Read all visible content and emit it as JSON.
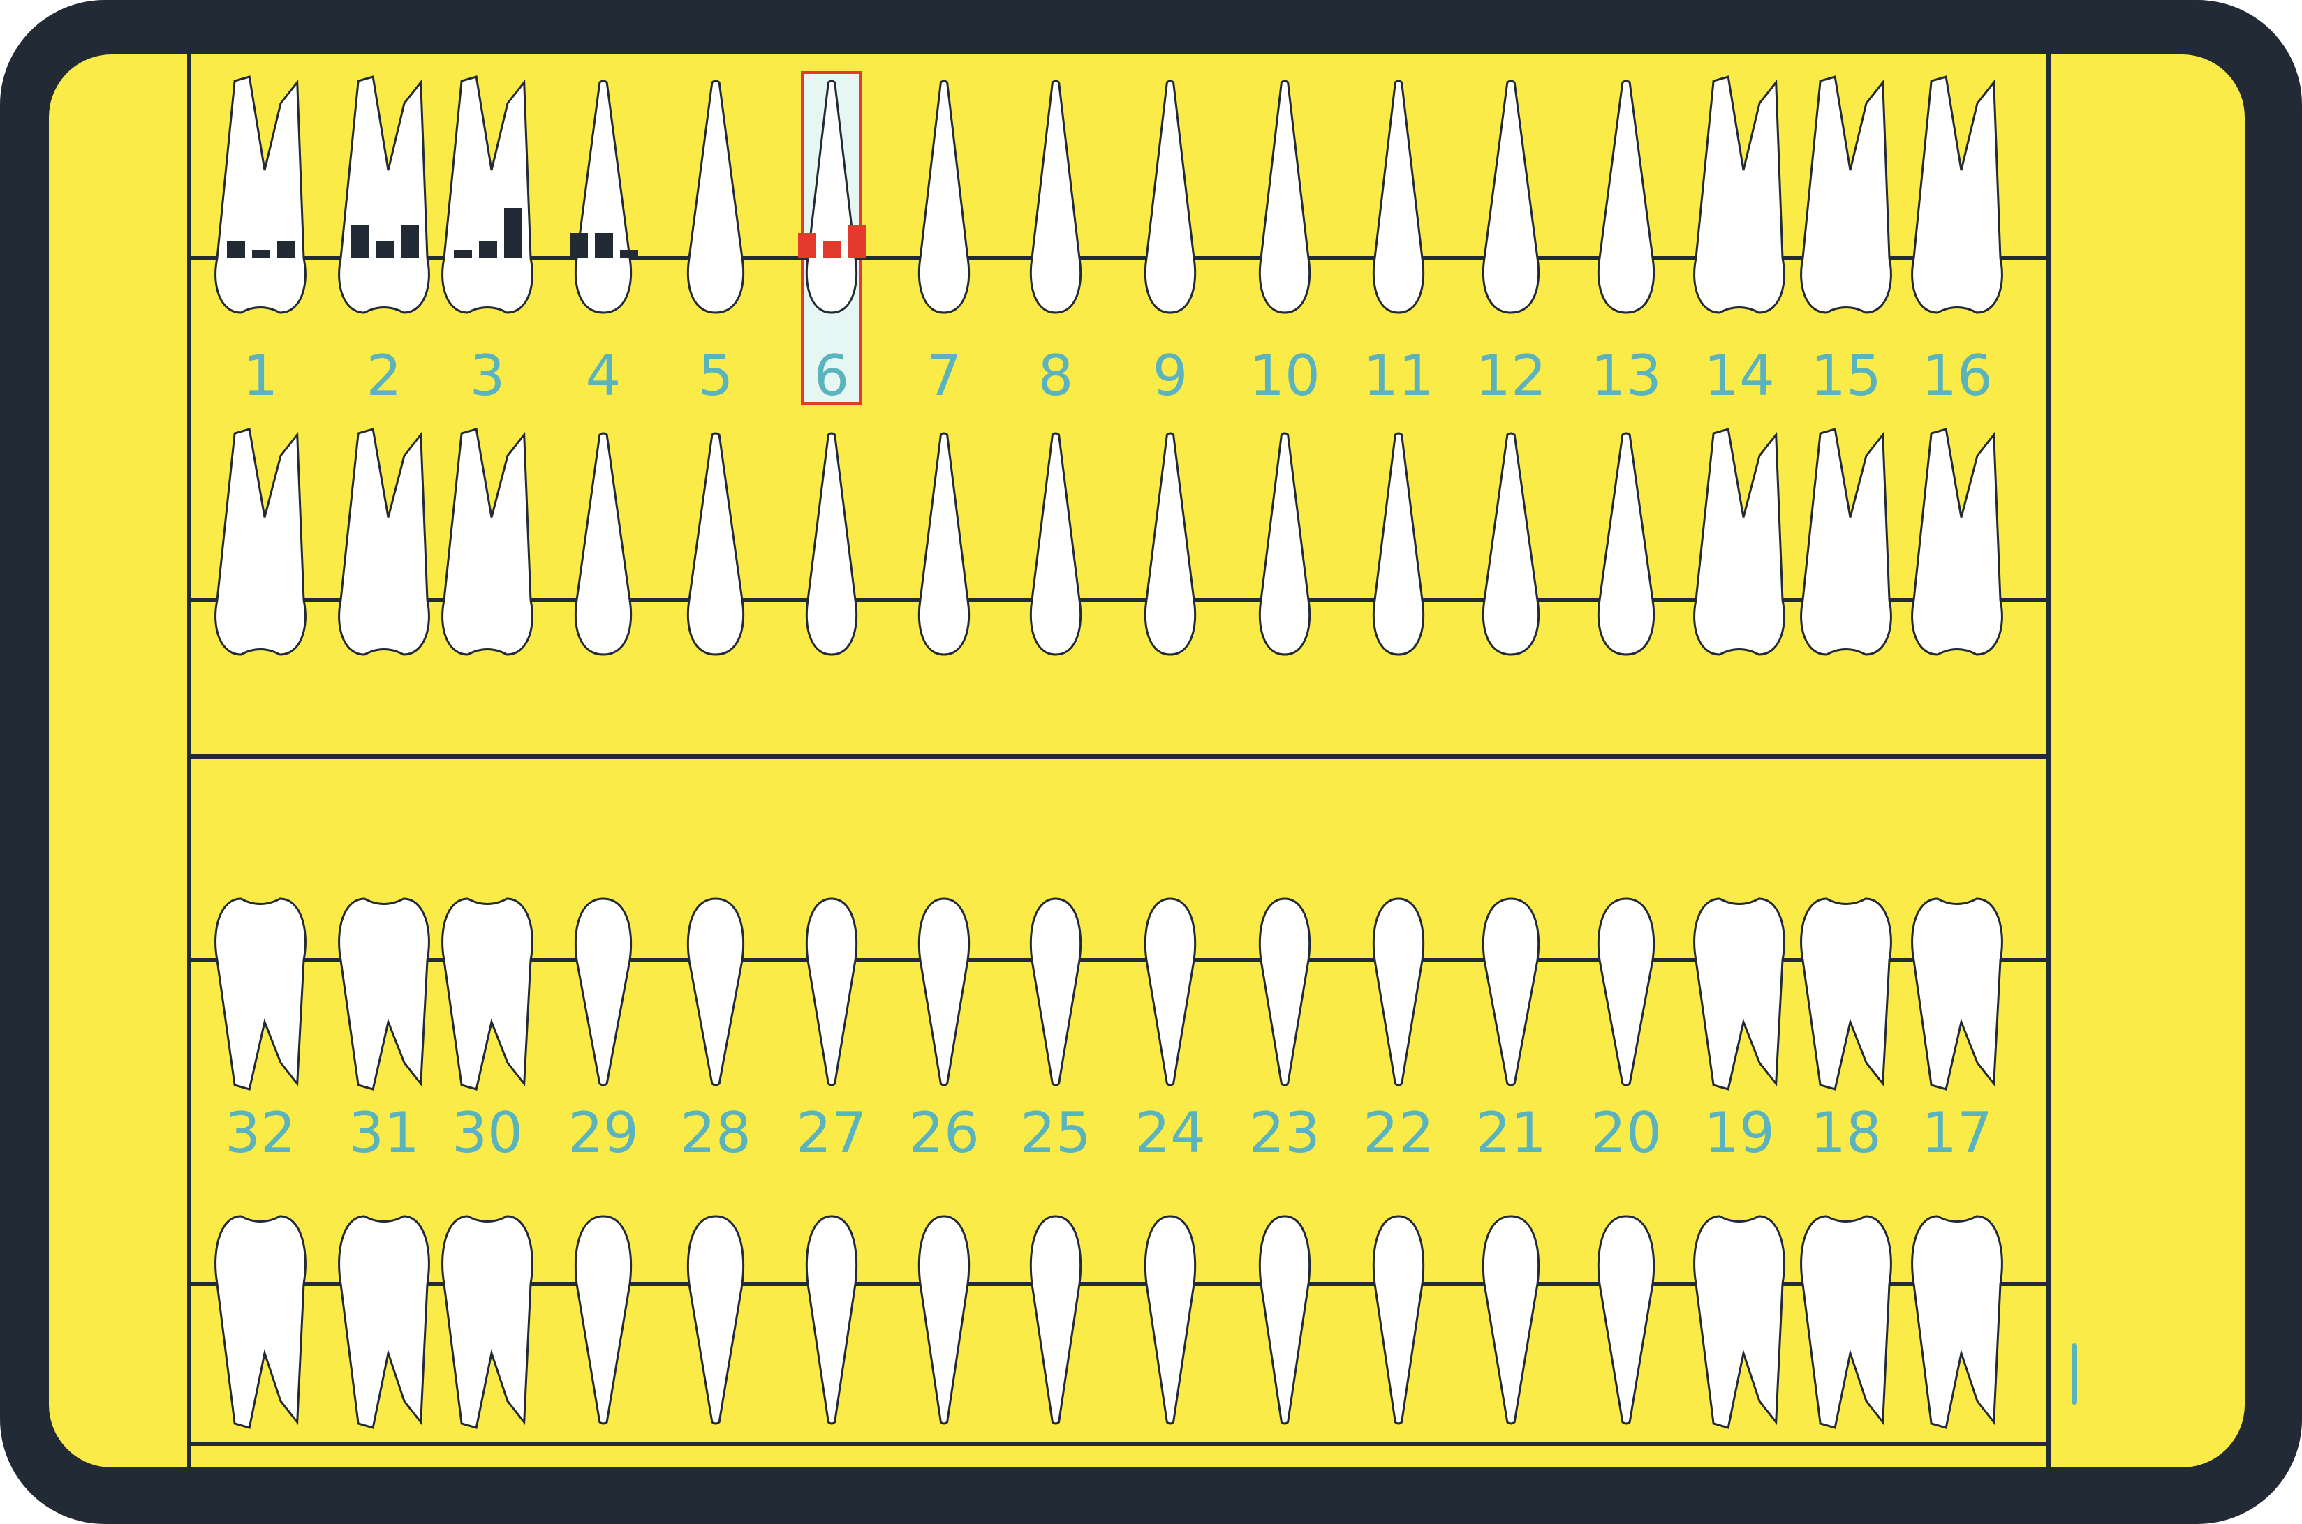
{
  "screen": {
    "background_color": "#fbeb49",
    "frame_color": "#222a36",
    "line_color": "#222a36",
    "tooth_fill": "#ffffff",
    "number_color": "#5ab3bd"
  },
  "upper_arch": {
    "tooth_numbers": [
      "1",
      "2",
      "3",
      "4",
      "5",
      "6",
      "7",
      "8",
      "9",
      "10",
      "11",
      "12",
      "13",
      "14",
      "15",
      "16"
    ],
    "tooth_types": [
      "molar",
      "molar",
      "molar",
      "premolar",
      "premolar",
      "canine",
      "incisor",
      "incisor",
      "incisor",
      "incisor",
      "canine",
      "premolar",
      "premolar",
      "molar",
      "molar",
      "molar"
    ]
  },
  "lower_arch": {
    "tooth_numbers": [
      "32",
      "31",
      "30",
      "29",
      "28",
      "27",
      "26",
      "25",
      "24",
      "23",
      "22",
      "21",
      "20",
      "19",
      "18",
      "17"
    ],
    "tooth_types": [
      "molar",
      "molar",
      "molar",
      "premolar",
      "premolar",
      "canine",
      "incisor",
      "incisor",
      "incisor",
      "incisor",
      "canine",
      "premolar",
      "premolar",
      "molar",
      "molar",
      "molar"
    ]
  },
  "selected_tooth": {
    "number": "6",
    "highlight_fill": "#e6f7f3",
    "border_color": "#e23b2e"
  },
  "chart_data": {
    "type": "bar",
    "note_series": "pocket depth bars drawn above tooth cervical line",
    "series": [
      {
        "tooth": "1",
        "values": [
          2,
          1,
          2
        ],
        "color": "#222a36"
      },
      {
        "tooth": "2",
        "values": [
          4,
          2,
          4
        ],
        "color": "#222a36"
      },
      {
        "tooth": "3",
        "values": [
          1,
          2,
          6
        ],
        "color": "#222a36"
      },
      {
        "tooth": "4",
        "values": [
          3,
          3,
          1
        ],
        "color": "#222a36"
      },
      {
        "tooth": "6",
        "values": [
          3,
          2,
          4
        ],
        "color": "#e23b2e"
      }
    ]
  }
}
